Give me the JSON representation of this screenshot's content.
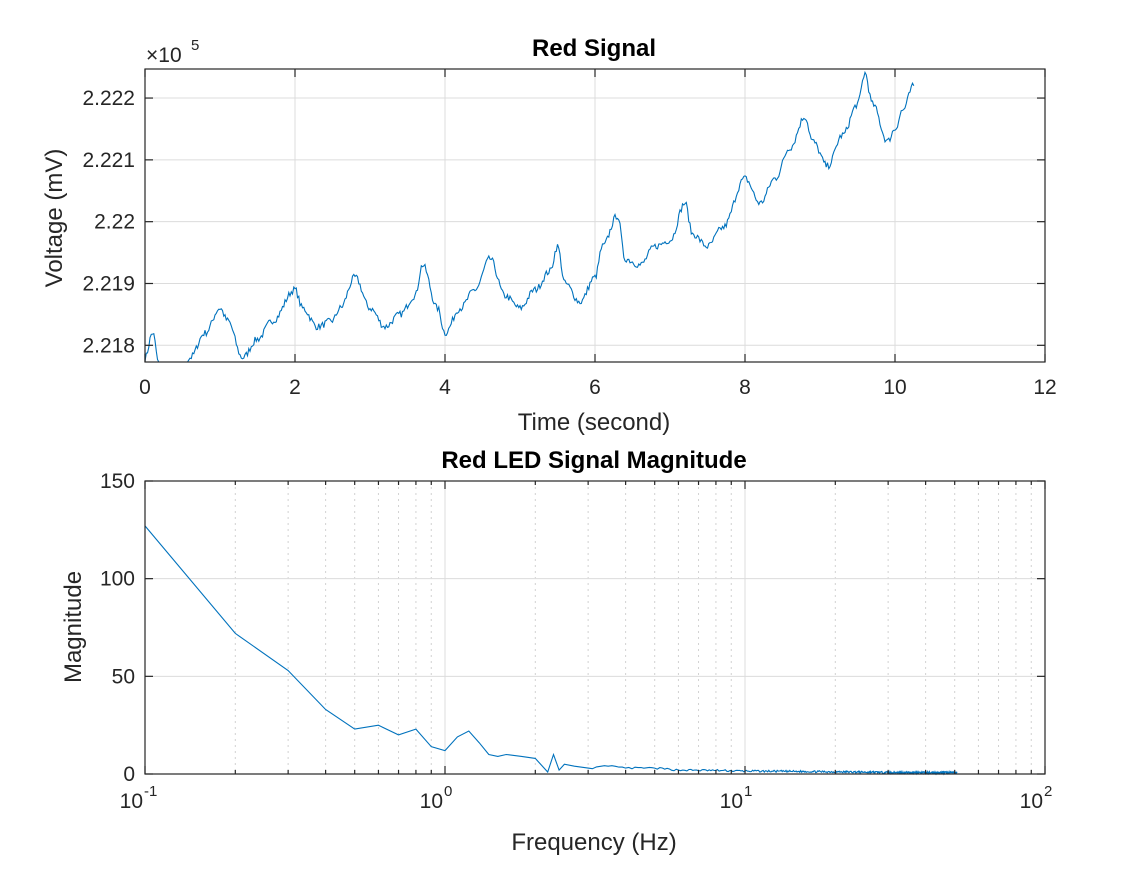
{
  "chart_data": [
    {
      "type": "line",
      "title": "Red Signal",
      "xlabel": "Time (second)",
      "ylabel": "Voltage (mV)",
      "y_exponent_label": "×10",
      "y_exponent_power": "5",
      "xlim": [
        0,
        12
      ],
      "ylim": [
        2.21773,
        2.22247
      ],
      "xticks": [
        "0",
        "2",
        "4",
        "6",
        "8",
        "10",
        "12"
      ],
      "yticks": [
        "2.218",
        "2.219",
        "2.22",
        "2.221",
        "2.222"
      ],
      "y_tick_values": [
        2.218,
        2.219,
        2.22,
        2.221,
        2.222
      ],
      "grid": true,
      "line_color": "#0072BD",
      "series": [
        {
          "x": [
            0,
            0.1,
            0.2,
            0.3,
            0.4,
            0.5,
            0.6,
            0.8,
            1.0,
            1.1,
            1.3,
            1.5,
            1.7,
            2.0,
            2.1,
            2.3,
            2.5,
            2.6,
            2.8,
            3.0,
            3.2,
            3.4,
            3.6,
            3.7,
            3.9,
            4.0,
            4.2,
            4.4,
            4.6,
            4.8,
            5.0,
            5.2,
            5.4,
            5.5,
            5.6,
            5.8,
            6.0,
            6.1,
            6.3,
            6.4,
            6.6,
            6.8,
            7.0,
            7.2,
            7.3,
            7.5,
            7.7,
            8.0,
            8.2,
            8.4,
            8.6,
            8.8,
            8.9,
            9.1,
            9.3,
            9.5,
            9.6,
            9.7,
            9.9,
            10.0,
            10.1,
            10.25
          ],
          "y": [
            2.2178,
            2.2182,
            2.2176,
            2.2175,
            2.2174,
            2.2176,
            2.2178,
            2.2182,
            2.2186,
            2.2184,
            2.2178,
            2.2181,
            2.2184,
            2.2189,
            2.2186,
            2.2183,
            2.2184,
            2.2186,
            2.2191,
            2.2186,
            2.2183,
            2.2185,
            2.2188,
            2.2193,
            2.2186,
            2.2182,
            2.2186,
            2.2189,
            2.2194,
            2.2188,
            2.2186,
            2.2189,
            2.2192,
            2.2196,
            2.219,
            2.2187,
            2.2191,
            2.2196,
            2.2201,
            2.2194,
            2.2193,
            2.2196,
            2.2197,
            2.2203,
            2.2198,
            2.2196,
            2.2199,
            2.2207,
            2.2203,
            2.2207,
            2.2212,
            2.2217,
            2.2213,
            2.2209,
            2.2214,
            2.2219,
            2.2224,
            2.2219,
            2.2213,
            2.2215,
            2.2218,
            2.2222
          ]
        }
      ]
    },
    {
      "type": "line",
      "title": "Red LED Signal Magnitude",
      "xlabel": "Frequency (Hz)",
      "ylabel": "Magnitude",
      "x_scale": "log",
      "xlim": [
        0.1,
        100
      ],
      "ylim": [
        0,
        150
      ],
      "xticks_base": [
        "10",
        "10",
        "10",
        "10"
      ],
      "xticks_exp": [
        "-1",
        "0",
        "1",
        "2"
      ],
      "x_tick_values": [
        0.1,
        1,
        10,
        100
      ],
      "yticks": [
        "0",
        "50",
        "100",
        "150"
      ],
      "y_tick_values": [
        0,
        50,
        100,
        150
      ],
      "grid": true,
      "minor_grid": true,
      "line_color": "#0072BD",
      "series": [
        {
          "x": [
            0.1,
            0.2,
            0.3,
            0.4,
            0.5,
            0.6,
            0.7,
            0.8,
            0.9,
            1.0,
            1.1,
            1.2,
            1.3,
            1.4,
            1.5,
            1.6,
            1.8,
            2.0,
            2.2,
            2.3,
            2.4,
            2.5,
            2.7,
            3.0,
            3.5,
            4.0,
            5.0,
            6.0,
            8.0,
            10.0,
            15.0,
            20.0,
            30.0,
            40.0,
            51.0
          ],
          "y": [
            127,
            72,
            53,
            33,
            23,
            25,
            20,
            23,
            14,
            12,
            19,
            22,
            16,
            10,
            9,
            10,
            9,
            8,
            1,
            10,
            2,
            5,
            4,
            3,
            4,
            3,
            3,
            2,
            1.8,
            1.5,
            1.3,
            1.1,
            0.8,
            0.7,
            0.7
          ]
        }
      ]
    }
  ]
}
